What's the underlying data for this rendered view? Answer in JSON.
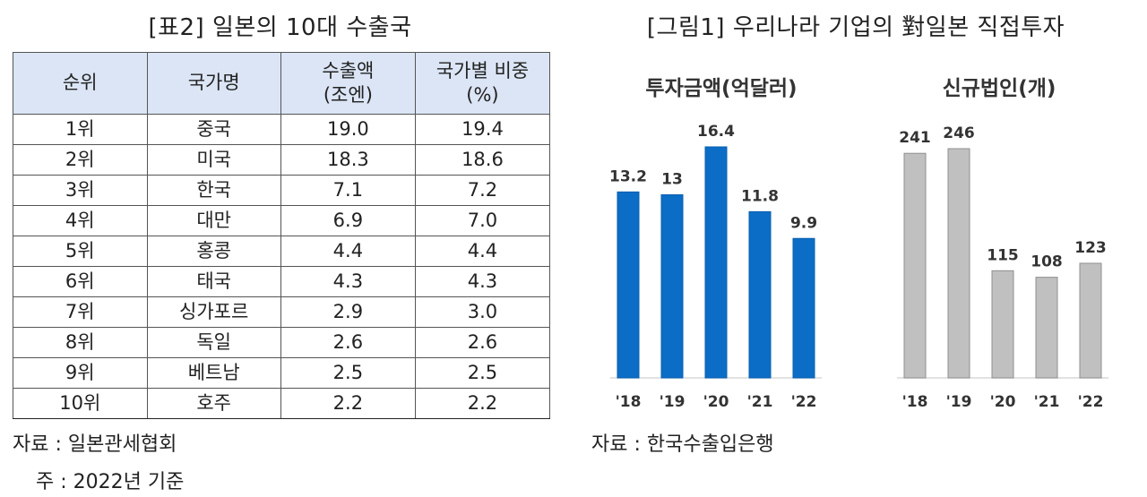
{
  "table": {
    "title": "[표2] 일본의 10대 수출국",
    "headers": [
      "순위",
      "국가명",
      "수출액\n(조엔)",
      "국가별 비중\n(%)"
    ],
    "rows": [
      [
        "1위",
        "중국",
        "19.0",
        "19.4"
      ],
      [
        "2위",
        "미국",
        "18.3",
        "18.6"
      ],
      [
        "3위",
        "한국",
        "7.1",
        "7.2"
      ],
      [
        "4위",
        "대만",
        "6.9",
        "7.0"
      ],
      [
        "5위",
        "홍콩",
        "4.4",
        "4.4"
      ],
      [
        "6위",
        "태국",
        "4.3",
        "4.3"
      ],
      [
        "7위",
        "싱가포르",
        "2.9",
        "3.0"
      ],
      [
        "8위",
        "독일",
        "2.6",
        "2.6"
      ],
      [
        "9위",
        "베트남",
        "2.5",
        "2.5"
      ],
      [
        "10위",
        "호주",
        "2.2",
        "2.2"
      ]
    ],
    "source": "자료 : 일본관세협회",
    "note": "주 : 2022년 기준"
  },
  "figure": {
    "title": "[그림1] 우리나라 기업의 對일본 직접투자",
    "source": "자료 : 한국수출입은행"
  },
  "chart_data": [
    {
      "type": "bar",
      "title": "투자금액(억달러)",
      "categories": [
        "'18",
        "'19",
        "'20",
        "'21",
        "'22"
      ],
      "values": [
        13.2,
        13.0,
        16.4,
        11.8,
        9.9
      ],
      "color": "#0b6dc6",
      "ylim": [
        0,
        16.4
      ]
    },
    {
      "type": "bar",
      "title": "신규법인(개)",
      "categories": [
        "'18",
        "'19",
        "'20",
        "'21",
        "'22"
      ],
      "values": [
        241,
        246,
        115,
        108,
        123
      ],
      "color": "#c0c0c0",
      "ylim": [
        0,
        246
      ]
    }
  ]
}
